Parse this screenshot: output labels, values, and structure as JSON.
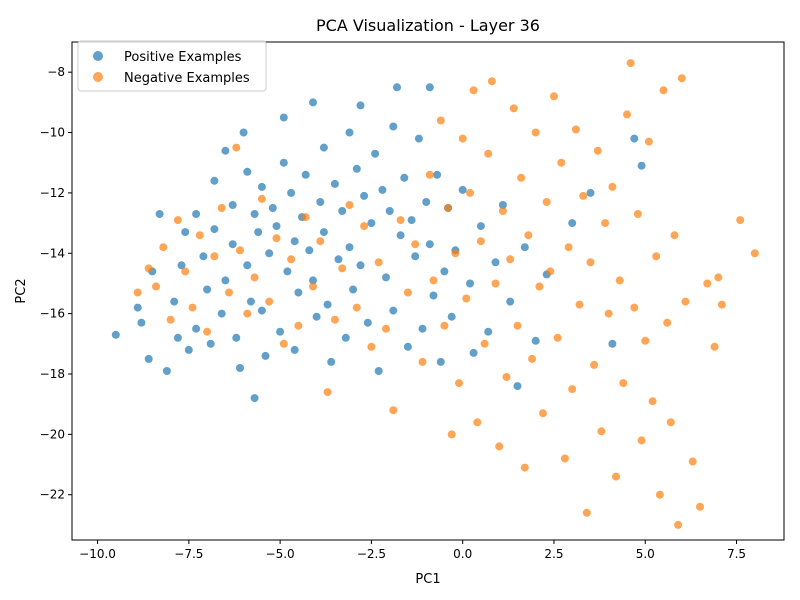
{
  "chart_data": {
    "type": "scatter",
    "title": "PCA Visualization - Layer 36",
    "xlabel": "PC1",
    "ylabel": "PC2",
    "xlim": [
      -10.7,
      8.8
    ],
    "ylim": [
      -23.5,
      -7.0
    ],
    "xticks": [
      -10.0,
      -7.5,
      -5.0,
      -2.5,
      0.0,
      2.5,
      5.0,
      7.5
    ],
    "xtick_labels": [
      "−10.0",
      "−7.5",
      "−5.0",
      "−2.5",
      "0.0",
      "2.5",
      "5.0",
      "7.5"
    ],
    "yticks": [
      -22,
      -20,
      -18,
      -16,
      -14,
      -12,
      -10,
      -8
    ],
    "ytick_labels": [
      "−22",
      "−20",
      "−18",
      "−16",
      "−14",
      "−12",
      "−10",
      "−8"
    ],
    "grid": false,
    "legend_position": "upper-left",
    "series": [
      {
        "name": "Positive Examples",
        "color": "#1f77b4",
        "points": [
          [
            -9.5,
            -16.7
          ],
          [
            -8.9,
            -15.8
          ],
          [
            -8.8,
            -16.3
          ],
          [
            -8.6,
            -17.5
          ],
          [
            -8.5,
            -14.6
          ],
          [
            -8.3,
            -12.7
          ],
          [
            -8.1,
            -17.9
          ],
          [
            -7.9,
            -15.6
          ],
          [
            -7.8,
            -16.8
          ],
          [
            -7.7,
            -14.4
          ],
          [
            -7.6,
            -13.3
          ],
          [
            -7.5,
            -17.2
          ],
          [
            -7.3,
            -12.7
          ],
          [
            -7.3,
            -16.5
          ],
          [
            -7.1,
            -14.1
          ],
          [
            -7.0,
            -15.2
          ],
          [
            -6.9,
            -17.0
          ],
          [
            -6.8,
            -11.6
          ],
          [
            -6.8,
            -13.2
          ],
          [
            -6.6,
            -16.0
          ],
          [
            -6.5,
            -14.9
          ],
          [
            -6.5,
            -10.6
          ],
          [
            -6.3,
            -12.4
          ],
          [
            -6.3,
            -13.7
          ],
          [
            -6.2,
            -16.8
          ],
          [
            -6.1,
            -17.8
          ],
          [
            -6.0,
            -10.0
          ],
          [
            -5.9,
            -11.3
          ],
          [
            -5.9,
            -14.4
          ],
          [
            -5.8,
            -15.6
          ],
          [
            -5.7,
            -12.7
          ],
          [
            -5.7,
            -18.8
          ],
          [
            -5.6,
            -13.3
          ],
          [
            -5.5,
            -11.8
          ],
          [
            -5.5,
            -15.9
          ],
          [
            -5.4,
            -17.4
          ],
          [
            -5.3,
            -14.0
          ],
          [
            -5.2,
            -12.5
          ],
          [
            -5.1,
            -13.1
          ],
          [
            -5.0,
            -16.6
          ],
          [
            -4.9,
            -9.5
          ],
          [
            -4.9,
            -11.0
          ],
          [
            -4.8,
            -14.6
          ],
          [
            -4.7,
            -12.0
          ],
          [
            -4.6,
            -13.6
          ],
          [
            -4.6,
            -17.2
          ],
          [
            -4.5,
            -15.3
          ],
          [
            -4.4,
            -12.8
          ],
          [
            -4.3,
            -11.4
          ],
          [
            -4.2,
            -13.9
          ],
          [
            -4.1,
            -9.0
          ],
          [
            -4.1,
            -14.9
          ],
          [
            -4.0,
            -16.1
          ],
          [
            -3.9,
            -12.3
          ],
          [
            -3.8,
            -10.5
          ],
          [
            -3.8,
            -13.3
          ],
          [
            -3.7,
            -15.7
          ],
          [
            -3.6,
            -17.6
          ],
          [
            -3.5,
            -11.7
          ],
          [
            -3.4,
            -14.2
          ],
          [
            -3.3,
            -12.6
          ],
          [
            -3.2,
            -16.8
          ],
          [
            -3.1,
            -10.0
          ],
          [
            -3.1,
            -13.8
          ],
          [
            -3.0,
            -15.2
          ],
          [
            -2.9,
            -11.2
          ],
          [
            -2.8,
            -9.1
          ],
          [
            -2.8,
            -14.4
          ],
          [
            -2.7,
            -12.1
          ],
          [
            -2.6,
            -16.3
          ],
          [
            -2.5,
            -13.0
          ],
          [
            -2.4,
            -10.7
          ],
          [
            -2.3,
            -17.9
          ],
          [
            -2.2,
            -11.9
          ],
          [
            -2.1,
            -14.8
          ],
          [
            -2.0,
            -12.6
          ],
          [
            -1.9,
            -9.8
          ],
          [
            -1.9,
            -15.9
          ],
          [
            -1.8,
            -8.5
          ],
          [
            -1.7,
            -13.4
          ],
          [
            -1.6,
            -11.5
          ],
          [
            -1.5,
            -17.1
          ],
          [
            -1.4,
            -12.9
          ],
          [
            -1.3,
            -14.1
          ],
          [
            -1.2,
            -10.2
          ],
          [
            -1.1,
            -16.5
          ],
          [
            -1.0,
            -12.3
          ],
          [
            -0.9,
            -8.5
          ],
          [
            -0.9,
            -13.7
          ],
          [
            -0.8,
            -15.4
          ],
          [
            -0.7,
            -11.4
          ],
          [
            -0.6,
            -17.6
          ],
          [
            -0.5,
            -14.6
          ],
          [
            -0.4,
            -12.5
          ],
          [
            -0.3,
            -16.1
          ],
          [
            -0.2,
            -13.9
          ],
          [
            0.0,
            -11.9
          ],
          [
            0.2,
            -15.0
          ],
          [
            0.3,
            -17.3
          ],
          [
            0.5,
            -13.1
          ],
          [
            0.7,
            -16.6
          ],
          [
            0.9,
            -14.3
          ],
          [
            1.1,
            -12.4
          ],
          [
            1.3,
            -15.6
          ],
          [
            1.5,
            -18.4
          ],
          [
            1.7,
            -13.8
          ],
          [
            2.0,
            -16.9
          ],
          [
            2.3,
            -14.7
          ],
          [
            3.0,
            -13.0
          ],
          [
            3.5,
            -12.0
          ],
          [
            4.1,
            -17.0
          ],
          [
            4.7,
            -10.2
          ],
          [
            4.9,
            -11.1
          ]
        ]
      },
      {
        "name": "Negative Examples",
        "color": "#ff7f0e",
        "points": [
          [
            -8.9,
            -15.3
          ],
          [
            -8.6,
            -14.5
          ],
          [
            -8.4,
            -15.1
          ],
          [
            -8.2,
            -13.8
          ],
          [
            -8.0,
            -16.2
          ],
          [
            -7.8,
            -12.9
          ],
          [
            -7.6,
            -14.6
          ],
          [
            -7.4,
            -15.8
          ],
          [
            -7.2,
            -13.4
          ],
          [
            -7.0,
            -16.6
          ],
          [
            -6.8,
            -14.1
          ],
          [
            -6.6,
            -12.5
          ],
          [
            -6.4,
            -15.3
          ],
          [
            -6.2,
            -10.5
          ],
          [
            -6.1,
            -13.9
          ],
          [
            -5.9,
            -16.0
          ],
          [
            -5.7,
            -14.8
          ],
          [
            -5.5,
            -12.2
          ],
          [
            -5.3,
            -15.6
          ],
          [
            -5.1,
            -13.5
          ],
          [
            -4.9,
            -17.0
          ],
          [
            -4.7,
            -14.2
          ],
          [
            -4.5,
            -16.4
          ],
          [
            -4.3,
            -12.8
          ],
          [
            -4.1,
            -15.1
          ],
          [
            -3.9,
            -13.6
          ],
          [
            -3.7,
            -18.6
          ],
          [
            -3.5,
            -16.2
          ],
          [
            -3.3,
            -14.5
          ],
          [
            -3.1,
            -12.4
          ],
          [
            -2.9,
            -15.8
          ],
          [
            -2.7,
            -13.1
          ],
          [
            -2.5,
            -17.1
          ],
          [
            -2.3,
            -14.3
          ],
          [
            -2.1,
            -16.5
          ],
          [
            -1.9,
            -19.2
          ],
          [
            -1.7,
            -12.9
          ],
          [
            -1.5,
            -15.3
          ],
          [
            -1.3,
            -13.7
          ],
          [
            -1.1,
            -17.6
          ],
          [
            -0.9,
            -11.4
          ],
          [
            -0.8,
            -14.9
          ],
          [
            -0.6,
            -9.6
          ],
          [
            -0.5,
            -16.4
          ],
          [
            -0.4,
            -12.5
          ],
          [
            -0.3,
            -20.0
          ],
          [
            -0.2,
            -14.0
          ],
          [
            -0.1,
            -18.3
          ],
          [
            0.0,
            -10.2
          ],
          [
            0.1,
            -15.5
          ],
          [
            0.2,
            -12.0
          ],
          [
            0.3,
            -8.6
          ],
          [
            0.4,
            -19.6
          ],
          [
            0.5,
            -13.6
          ],
          [
            0.6,
            -17.0
          ],
          [
            0.7,
            -10.7
          ],
          [
            0.8,
            -8.3
          ],
          [
            0.9,
            -15.0
          ],
          [
            1.0,
            -20.4
          ],
          [
            1.1,
            -12.6
          ],
          [
            1.2,
            -18.1
          ],
          [
            1.3,
            -14.2
          ],
          [
            1.4,
            -9.2
          ],
          [
            1.5,
            -16.4
          ],
          [
            1.6,
            -11.5
          ],
          [
            1.7,
            -21.1
          ],
          [
            1.8,
            -13.4
          ],
          [
            1.9,
            -17.5
          ],
          [
            2.0,
            -10.0
          ],
          [
            2.1,
            -15.1
          ],
          [
            2.2,
            -19.3
          ],
          [
            2.3,
            -12.3
          ],
          [
            2.4,
            -14.6
          ],
          [
            2.5,
            -8.8
          ],
          [
            2.6,
            -16.8
          ],
          [
            2.7,
            -11.0
          ],
          [
            2.8,
            -20.8
          ],
          [
            2.9,
            -13.8
          ],
          [
            3.0,
            -18.5
          ],
          [
            3.1,
            -9.9
          ],
          [
            3.2,
            -15.7
          ],
          [
            3.3,
            -12.1
          ],
          [
            3.4,
            -22.6
          ],
          [
            3.5,
            -14.3
          ],
          [
            3.6,
            -17.7
          ],
          [
            3.7,
            -10.6
          ],
          [
            3.8,
            -19.9
          ],
          [
            3.9,
            -13.0
          ],
          [
            4.0,
            -16.0
          ],
          [
            4.1,
            -11.8
          ],
          [
            4.2,
            -21.4
          ],
          [
            4.3,
            -14.9
          ],
          [
            4.4,
            -18.3
          ],
          [
            4.5,
            -9.4
          ],
          [
            4.6,
            -7.7
          ],
          [
            4.7,
            -15.8
          ],
          [
            4.8,
            -12.7
          ],
          [
            4.9,
            -20.2
          ],
          [
            5.0,
            -16.9
          ],
          [
            5.1,
            -10.3
          ],
          [
            5.2,
            -18.9
          ],
          [
            5.3,
            -14.1
          ],
          [
            5.4,
            -22.0
          ],
          [
            5.5,
            -8.6
          ],
          [
            5.6,
            -16.3
          ],
          [
            5.7,
            -19.6
          ],
          [
            5.8,
            -13.4
          ],
          [
            5.9,
            -23.0
          ],
          [
            6.0,
            -8.2
          ],
          [
            6.1,
            -15.6
          ],
          [
            6.3,
            -20.9
          ],
          [
            6.5,
            -22.4
          ],
          [
            6.7,
            -15.0
          ],
          [
            6.9,
            -17.1
          ],
          [
            7.0,
            -14.8
          ],
          [
            7.1,
            -15.7
          ],
          [
            7.6,
            -12.9
          ],
          [
            8.0,
            -14.0
          ]
        ]
      }
    ]
  }
}
